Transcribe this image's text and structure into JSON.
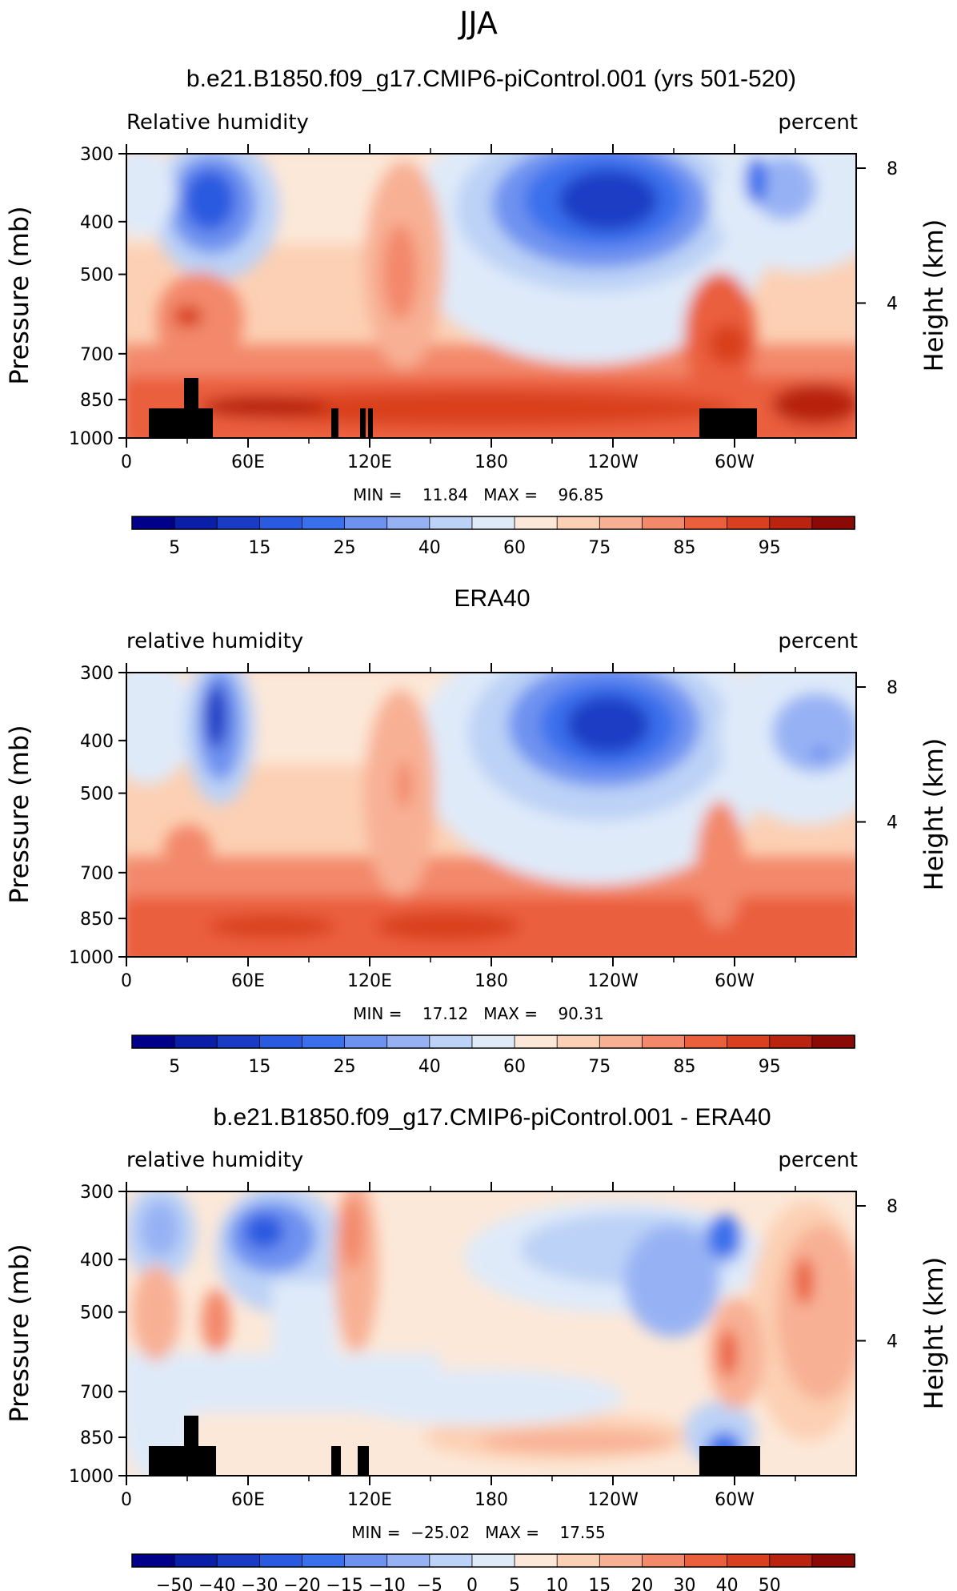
{
  "page": {
    "season": "JJA"
  },
  "chart_data": [
    {
      "type": "heatmap",
      "title": "b.e21.B1850.f09_g17.CMIP6-piControl.001 (yrs 501-520)",
      "left_label": "Relative humidity",
      "right_label": "percent",
      "ylabel": "Pressure (mb)",
      "ylabel2": "Height (km)",
      "xlim": [
        0,
        360
      ],
      "pressure_ticks": [
        "300",
        "400",
        "500",
        "700",
        "850",
        "1000"
      ],
      "pressure_values": [
        300,
        400,
        500,
        700,
        850,
        1000
      ],
      "height_ticks": [
        "8",
        "4"
      ],
      "height_values": [
        8,
        4
      ],
      "x_ticks": [
        "0",
        "60E",
        "120E",
        "180",
        "120W",
        "60W"
      ],
      "x_tick_values": [
        0,
        60,
        120,
        180,
        240,
        300
      ],
      "stats": "MIN =    11.84   MAX =    96.85",
      "colorbar": {
        "colors": [
          "#00008b",
          "#0a1ea8",
          "#1a3cc4",
          "#2a5ae0",
          "#3a70ec",
          "#6e92f0",
          "#97b2f4",
          "#bcd2f6",
          "#dfeaf9",
          "#fce8d8",
          "#fcd0b4",
          "#f8b094",
          "#f3886a",
          "#ea5f3c",
          "#d9401f",
          "#b8240f",
          "#8b0a05"
        ],
        "labels": [
          "5",
          "15",
          "25",
          "40",
          "60",
          "75",
          "85",
          "95"
        ],
        "label_after_index": [
          0,
          2,
          4,
          6,
          8,
          10,
          12,
          14
        ]
      }
    },
    {
      "type": "heatmap",
      "title": "ERA40",
      "left_label": "relative humidity",
      "right_label": "percent",
      "ylabel": "Pressure (mb)",
      "ylabel2": "Height (km)",
      "xlim": [
        0,
        360
      ],
      "pressure_ticks": [
        "300",
        "400",
        "500",
        "700",
        "850",
        "1000"
      ],
      "pressure_values": [
        300,
        400,
        500,
        700,
        850,
        1000
      ],
      "height_ticks": [
        "8",
        "4"
      ],
      "height_values": [
        8,
        4
      ],
      "x_ticks": [
        "0",
        "60E",
        "120E",
        "180",
        "120W",
        "60W"
      ],
      "x_tick_values": [
        0,
        60,
        120,
        180,
        240,
        300
      ],
      "stats": "MIN =    17.12   MAX =    90.31",
      "colorbar": {
        "colors": [
          "#00008b",
          "#0a1ea8",
          "#1a3cc4",
          "#2a5ae0",
          "#3a70ec",
          "#6e92f0",
          "#97b2f4",
          "#bcd2f6",
          "#dfeaf9",
          "#fce8d8",
          "#fcd0b4",
          "#f8b094",
          "#f3886a",
          "#ea5f3c",
          "#d9401f",
          "#b8240f",
          "#8b0a05"
        ],
        "labels": [
          "5",
          "15",
          "25",
          "40",
          "60",
          "75",
          "85",
          "95"
        ],
        "label_after_index": [
          0,
          2,
          4,
          6,
          8,
          10,
          12,
          14
        ]
      }
    },
    {
      "type": "heatmap",
      "title": "b.e21.B1850.f09_g17.CMIP6-piControl.001 - ERA40",
      "left_label": "relative humidity",
      "right_label": "percent",
      "ylabel": "Pressure (mb)",
      "ylabel2": "Height (km)",
      "xlim": [
        0,
        360
      ],
      "pressure_ticks": [
        "300",
        "400",
        "500",
        "700",
        "850",
        "1000"
      ],
      "pressure_values": [
        300,
        400,
        500,
        700,
        850,
        1000
      ],
      "height_ticks": [
        "8",
        "4"
      ],
      "height_values": [
        8,
        4
      ],
      "x_ticks": [
        "0",
        "60E",
        "120E",
        "180",
        "120W",
        "60W"
      ],
      "x_tick_values": [
        0,
        60,
        120,
        180,
        240,
        300
      ],
      "stats": "MIN =  −25.02   MAX =    17.55",
      "colorbar": {
        "colors": [
          "#00008b",
          "#0a1ea8",
          "#1a3cc4",
          "#2a5ae0",
          "#3a70ec",
          "#6e92f0",
          "#97b2f4",
          "#bcd2f6",
          "#dfeaf9",
          "#fce8d8",
          "#fcd0b4",
          "#f8b094",
          "#f3886a",
          "#ea5f3c",
          "#d9401f",
          "#b8240f",
          "#8b0a05"
        ],
        "labels": [
          "−50",
          "−40",
          "−30",
          "−20",
          "−15",
          "−10",
          "−5",
          "0",
          "5",
          "10",
          "15",
          "20",
          "30",
          "40",
          "50"
        ],
        "label_after_index": [
          0,
          1,
          2,
          3,
          4,
          5,
          6,
          7,
          8,
          9,
          10,
          11,
          12,
          13,
          14
        ]
      }
    }
  ]
}
